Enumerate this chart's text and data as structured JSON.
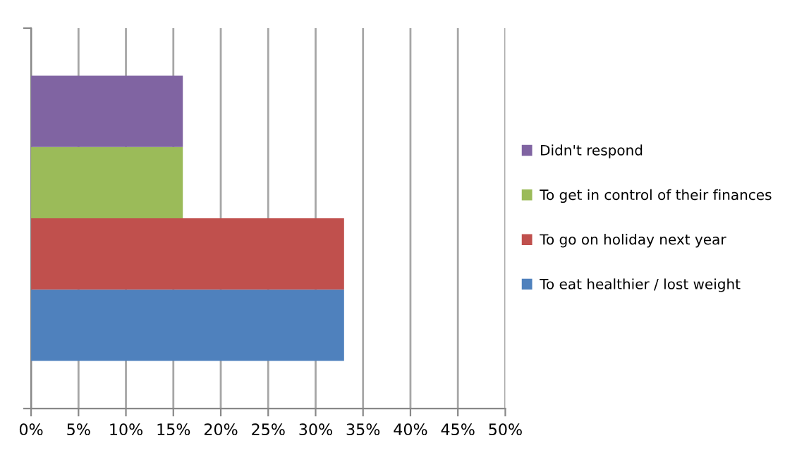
{
  "chart_data": {
    "type": "bar",
    "orientation": "horizontal",
    "categories": [
      null
    ],
    "series": [
      {
        "name": "To eat healthier / lost weight",
        "color": "#4f81bd",
        "values": [
          33
        ]
      },
      {
        "name": "To go on holiday next year",
        "color": "#c0504d",
        "values": [
          33
        ]
      },
      {
        "name": "To get in control of their finances",
        "color": "#9bbb59",
        "values": [
          16
        ]
      },
      {
        "name": "Didn't respond",
        "color": "#8064a2",
        "values": [
          16
        ]
      }
    ],
    "xlim": [
      0,
      50
    ],
    "xticks": [
      {
        "value": 0,
        "label": "0%"
      },
      {
        "value": 5,
        "label": "5%"
      },
      {
        "value": 10,
        "label": "10%"
      },
      {
        "value": 15,
        "label": "15%"
      },
      {
        "value": 20,
        "label": "20%"
      },
      {
        "value": 25,
        "label": "25%"
      },
      {
        "value": 30,
        "label": "30%"
      },
      {
        "value": 35,
        "label": "35%"
      },
      {
        "value": 40,
        "label": "40%"
      },
      {
        "value": 45,
        "label": "45%"
      },
      {
        "value": 50,
        "label": "50%"
      }
    ],
    "grid": "x",
    "legend": "right"
  }
}
